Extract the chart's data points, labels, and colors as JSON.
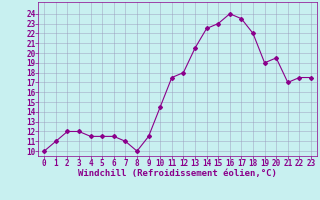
{
  "x": [
    0,
    1,
    2,
    3,
    4,
    5,
    6,
    7,
    8,
    9,
    10,
    11,
    12,
    13,
    14,
    15,
    16,
    17,
    18,
    19,
    20,
    21,
    22,
    23
  ],
  "y": [
    10,
    11,
    12,
    12,
    11.5,
    11.5,
    11.5,
    11,
    10,
    11.5,
    14.5,
    17.5,
    18,
    20.5,
    22.5,
    23,
    24,
    23.5,
    22,
    19,
    19.5,
    17,
    17.5,
    17.5
  ],
  "line_color": "#8B008B",
  "marker": "D",
  "marker_size": 2,
  "background_color": "#c8f0f0",
  "grid_color": "#9999bb",
  "xlabel": "Windchill (Refroidissement éolien,°C)",
  "ylim": [
    9.5,
    25.2
  ],
  "xlim": [
    -0.5,
    23.5
  ],
  "yticks": [
    10,
    11,
    12,
    13,
    14,
    15,
    16,
    17,
    18,
    19,
    20,
    21,
    22,
    23,
    24
  ],
  "xticks": [
    0,
    1,
    2,
    3,
    4,
    5,
    6,
    7,
    8,
    9,
    10,
    11,
    12,
    13,
    14,
    15,
    16,
    17,
    18,
    19,
    20,
    21,
    22,
    23
  ],
  "tick_color": "#8B008B",
  "label_color": "#8B008B",
  "xlabel_fontsize": 6.5,
  "tick_fontsize": 5.5,
  "spine_color": "#8B008B"
}
